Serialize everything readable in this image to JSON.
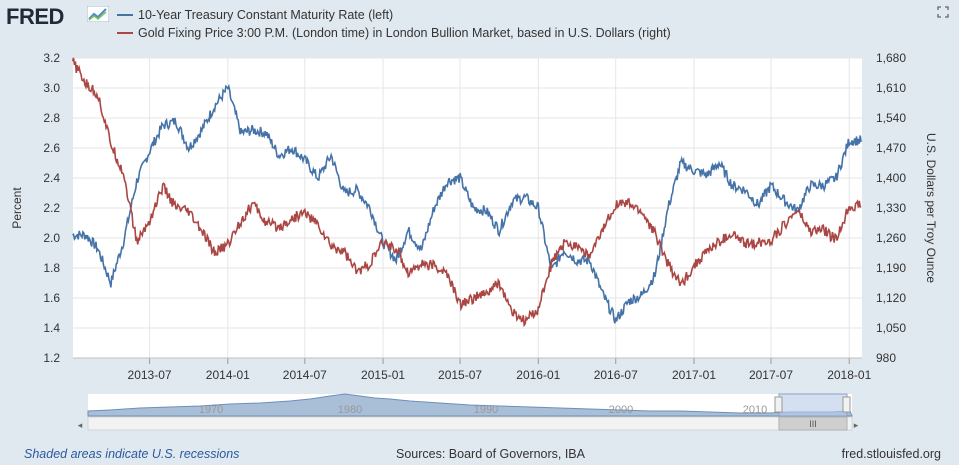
{
  "logo": {
    "text": "FRED"
  },
  "colors": {
    "series1": "#4572a7",
    "series2": "#aa4643",
    "plot_bg": "#ffffff",
    "page_bg": "#e1e9f0"
  },
  "icons": {
    "logo_graph": "line-graph-icon",
    "expand": "expand-icon"
  },
  "footer": {
    "recessions_note": "Shaded areas indicate U.S. recessions",
    "sources": "Sources: Board of Governors, IBA",
    "site": "fred.stlouisfed.org"
  },
  "navigator": {
    "labels": [
      "1970",
      "1980",
      "1990",
      "2000",
      "2010"
    ],
    "scroll_grip": "III"
  },
  "chart_data": {
    "type": "line",
    "title": "",
    "xlabel": "",
    "ylabel": "Percent",
    "y2label": "U.S. Dollars per Troy Ounce",
    "x_ticks": [
      "2013-07",
      "2014-01",
      "2014-07",
      "2015-01",
      "2015-07",
      "2016-01",
      "2016-07",
      "2017-01",
      "2017-07",
      "2018-01"
    ],
    "y_ticks": [
      "1.2",
      "1.4",
      "1.6",
      "1.8",
      "2.0",
      "2.2",
      "2.4",
      "2.6",
      "2.8",
      "3.0",
      "3.2"
    ],
    "y2_ticks": [
      "980",
      "1,050",
      "1,120",
      "1,190",
      "1,260",
      "1,330",
      "1,400",
      "1,470",
      "1,540",
      "1,610",
      "1,680"
    ],
    "ylim": [
      1.2,
      3.2
    ],
    "y2lim": [
      980,
      1680
    ],
    "grid": true,
    "x_range": [
      "2013-01-02",
      "2018-01-31"
    ],
    "series": [
      {
        "name": "10-Year Treasury Constant Maturity Rate (left)",
        "axis": "left",
        "x": [
          "2013-01",
          "2013-02",
          "2013-03",
          "2013-04",
          "2013-05",
          "2013-06",
          "2013-07",
          "2013-08",
          "2013-09",
          "2013-10",
          "2013-11",
          "2013-12",
          "2014-01",
          "2014-02",
          "2014-03",
          "2014-04",
          "2014-05",
          "2014-06",
          "2014-07",
          "2014-08",
          "2014-09",
          "2014-10",
          "2014-11",
          "2014-12",
          "2015-01",
          "2015-02",
          "2015-03",
          "2015-04",
          "2015-05",
          "2015-06",
          "2015-07",
          "2015-08",
          "2015-09",
          "2015-10",
          "2015-11",
          "2015-12",
          "2016-01",
          "2016-02",
          "2016-03",
          "2016-04",
          "2016-05",
          "2016-06",
          "2016-07",
          "2016-08",
          "2016-09",
          "2016-10",
          "2016-11",
          "2016-12",
          "2017-01",
          "2017-02",
          "2017-03",
          "2017-04",
          "2017-05",
          "2017-06",
          "2017-07",
          "2017-08",
          "2017-09",
          "2017-10",
          "2017-11",
          "2017-12",
          "2018-01"
        ],
        "values": [
          2.02,
          2.02,
          1.93,
          1.7,
          1.98,
          2.38,
          2.58,
          2.75,
          2.78,
          2.6,
          2.72,
          2.88,
          3.0,
          2.7,
          2.72,
          2.7,
          2.55,
          2.6,
          2.52,
          2.4,
          2.55,
          2.3,
          2.32,
          2.2,
          1.97,
          1.85,
          2.05,
          1.92,
          2.2,
          2.38,
          2.4,
          2.2,
          2.18,
          2.05,
          2.25,
          2.27,
          2.2,
          1.78,
          1.92,
          1.85,
          1.85,
          1.62,
          1.45,
          1.58,
          1.62,
          1.75,
          2.2,
          2.5,
          2.45,
          2.42,
          2.5,
          2.35,
          2.32,
          2.22,
          2.35,
          2.25,
          2.18,
          2.35,
          2.35,
          2.4,
          2.65
        ]
      },
      {
        "name": "Gold Fixing Price 3:00 P.M. (London time) in London Bullion Market, based in U.S. Dollars (right)",
        "axis": "right",
        "x": [
          "2013-01",
          "2013-02",
          "2013-03",
          "2013-04",
          "2013-05",
          "2013-06",
          "2013-07",
          "2013-08",
          "2013-09",
          "2013-10",
          "2013-11",
          "2013-12",
          "2014-01",
          "2014-02",
          "2014-03",
          "2014-04",
          "2014-05",
          "2014-06",
          "2014-07",
          "2014-08",
          "2014-09",
          "2014-10",
          "2014-11",
          "2014-12",
          "2015-01",
          "2015-02",
          "2015-03",
          "2015-04",
          "2015-05",
          "2015-06",
          "2015-07",
          "2015-08",
          "2015-09",
          "2015-10",
          "2015-11",
          "2015-12",
          "2016-01",
          "2016-02",
          "2016-03",
          "2016-04",
          "2016-05",
          "2016-06",
          "2016-07",
          "2016-08",
          "2016-09",
          "2016-10",
          "2016-11",
          "2016-12",
          "2017-01",
          "2017-02",
          "2017-03",
          "2017-04",
          "2017-05",
          "2017-06",
          "2017-07",
          "2017-08",
          "2017-09",
          "2017-10",
          "2017-11",
          "2017-12",
          "2018-01"
        ],
        "values": [
          1672,
          1620,
          1595,
          1480,
          1410,
          1250,
          1300,
          1380,
          1330,
          1320,
          1275,
          1225,
          1245,
          1300,
          1340,
          1295,
          1285,
          1305,
          1320,
          1290,
          1240,
          1230,
          1180,
          1200,
          1250,
          1235,
          1180,
          1200,
          1195,
          1175,
          1105,
          1120,
          1130,
          1155,
          1085,
          1065,
          1095,
          1200,
          1245,
          1245,
          1215,
          1280,
          1340,
          1340,
          1320,
          1270,
          1200,
          1150,
          1195,
          1230,
          1250,
          1270,
          1245,
          1250,
          1255,
          1290,
          1325,
          1275,
          1280,
          1255,
          1335
        ]
      }
    ]
  }
}
